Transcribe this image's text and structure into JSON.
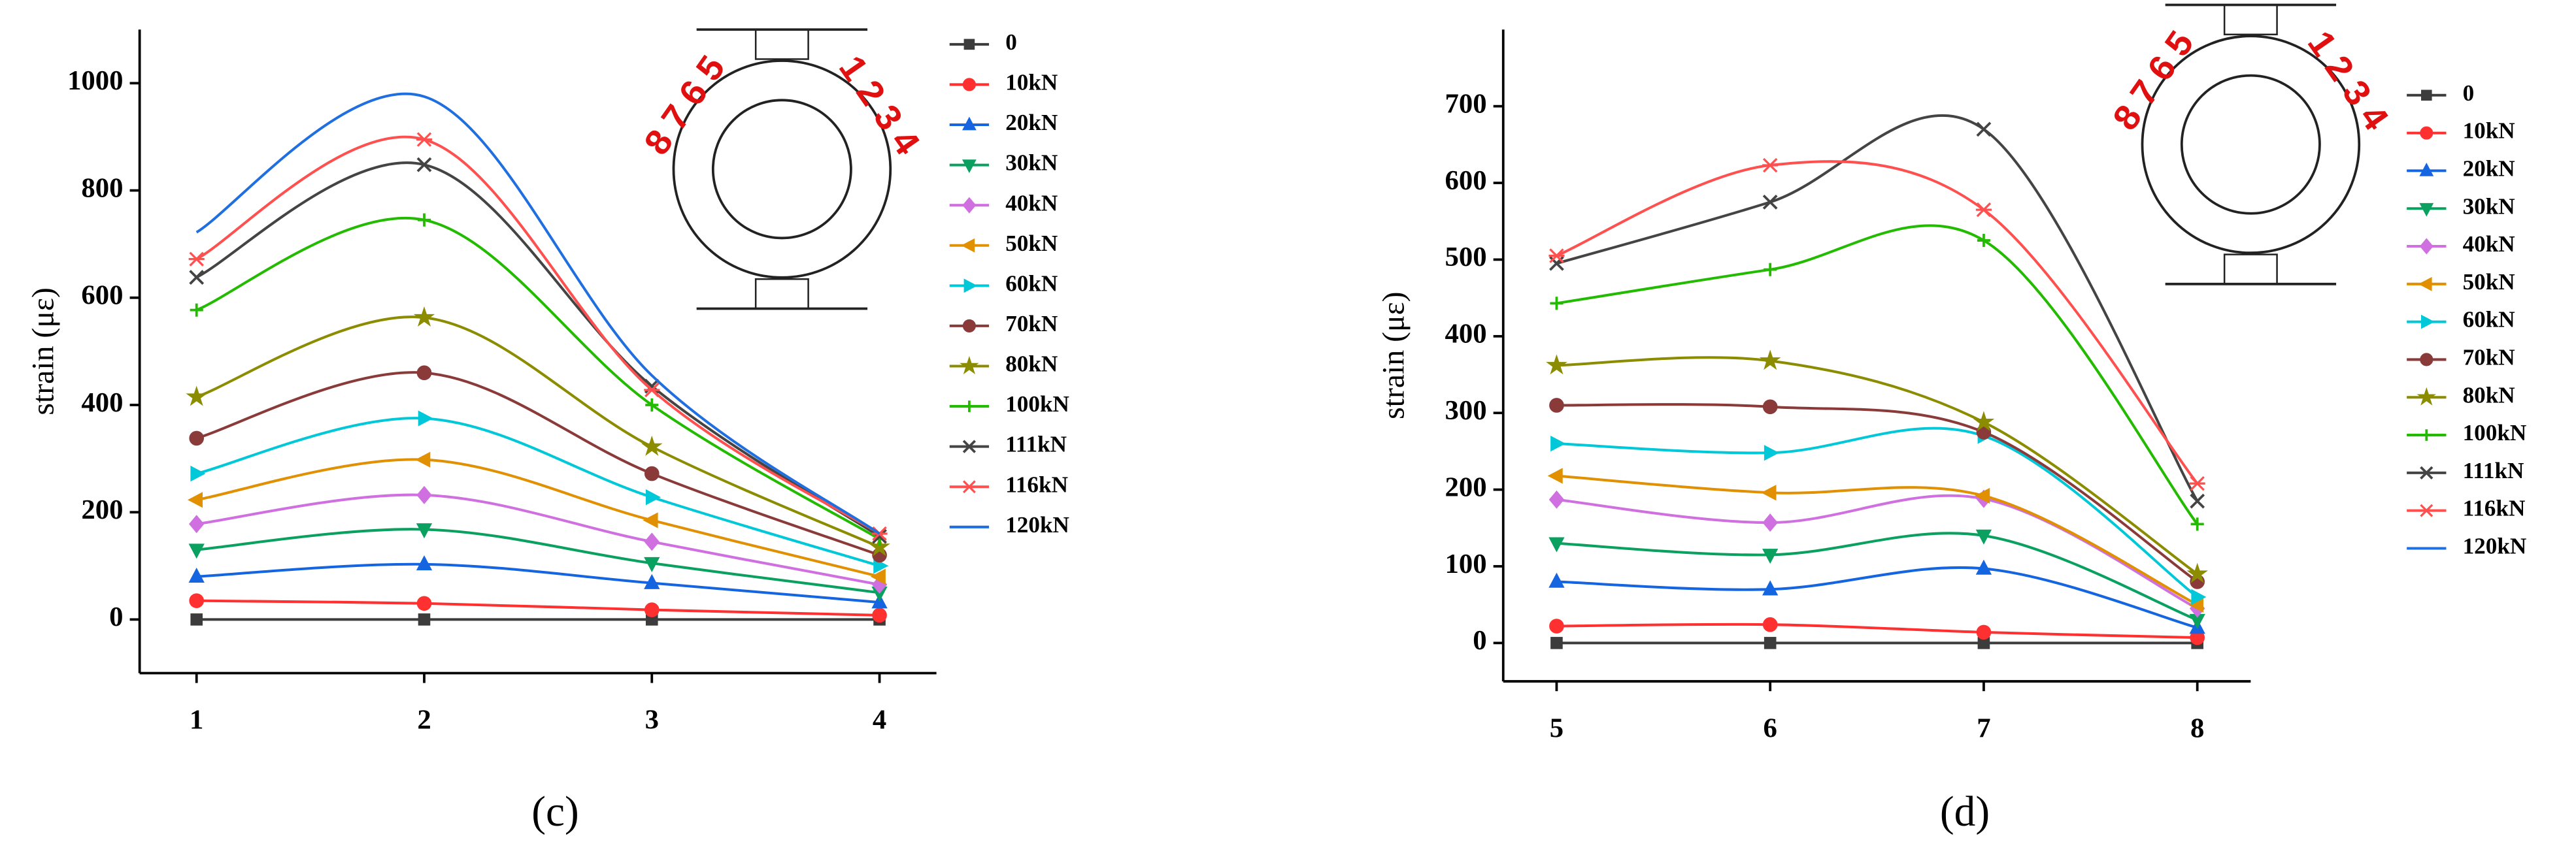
{
  "chart_data": [
    {
      "type": "line",
      "caption": "(c)",
      "ylabel": "strain (με)",
      "inset_labels": [
        "8 7 6 5",
        "1 2 3 4"
      ],
      "x": [
        1,
        2,
        3,
        4
      ],
      "xlim": [
        0.75,
        4.25
      ],
      "xticks": [
        1,
        2,
        3,
        4
      ],
      "ylim": [
        -100,
        1100
      ],
      "yticks": [
        0,
        200,
        400,
        600,
        800,
        1000
      ],
      "series": [
        {
          "name": "0",
          "color": "#3c3c3c",
          "marker": "square",
          "values": [
            0,
            0,
            0,
            0
          ]
        },
        {
          "name": "10kN",
          "color": "#ff3030",
          "marker": "circle",
          "values": [
            35,
            30,
            18,
            8
          ]
        },
        {
          "name": "20kN",
          "color": "#1565e0",
          "marker": "triangle-up",
          "values": [
            80,
            103,
            68,
            32
          ]
        },
        {
          "name": "30kN",
          "color": "#0aa060",
          "marker": "triangle-down",
          "values": [
            130,
            168,
            105,
            50
          ]
        },
        {
          "name": "40kN",
          "color": "#d070e0",
          "marker": "diamond",
          "values": [
            178,
            232,
            145,
            65
          ]
        },
        {
          "name": "50kN",
          "color": "#e09000",
          "marker": "triangle-left",
          "values": [
            223,
            298,
            185,
            80
          ]
        },
        {
          "name": "60kN",
          "color": "#00c8d8",
          "marker": "triangle-right",
          "values": [
            272,
            375,
            228,
            100
          ]
        },
        {
          "name": "70kN",
          "color": "#8b3a3a",
          "marker": "circle",
          "values": [
            338,
            460,
            272,
            120
          ]
        },
        {
          "name": "80kN",
          "color": "#8c8c00",
          "marker": "star",
          "values": [
            415,
            563,
            322,
            135
          ]
        },
        {
          "name": "100kN",
          "color": "#22bb00",
          "marker": "plus",
          "values": [
            577,
            745,
            400,
            150
          ]
        },
        {
          "name": "111kN",
          "color": "#444444",
          "marker": "cross",
          "values": [
            638,
            848,
            435,
            155
          ]
        },
        {
          "name": "116kN",
          "color": "#ff5050",
          "marker": "asterisk",
          "values": [
            672,
            895,
            428,
            160
          ]
        },
        {
          "name": "120kN",
          "color": "#1f6fe0",
          "marker": "none",
          "values": [
            722,
            975,
            455,
            160
          ]
        }
      ]
    },
    {
      "type": "line",
      "caption": "(d)",
      "ylabel": "strain (με)",
      "inset_labels": [
        "8 7 6 5",
        "1 2 3 4"
      ],
      "x": [
        5,
        6,
        7,
        8
      ],
      "xlim": [
        4.75,
        8.25
      ],
      "xticks": [
        5,
        6,
        7,
        8
      ],
      "ylim": [
        -50,
        800
      ],
      "yticks": [
        0,
        100,
        200,
        300,
        400,
        500,
        600,
        700
      ],
      "series": [
        {
          "name": "0",
          "color": "#3c3c3c",
          "marker": "square",
          "values": [
            0,
            0,
            0,
            0
          ]
        },
        {
          "name": "10kN",
          "color": "#ff3030",
          "marker": "circle",
          "values": [
            22,
            24,
            14,
            7
          ]
        },
        {
          "name": "20kN",
          "color": "#1565e0",
          "marker": "triangle-up",
          "values": [
            80,
            70,
            97,
            20
          ]
        },
        {
          "name": "30kN",
          "color": "#0aa060",
          "marker": "triangle-down",
          "values": [
            130,
            115,
            140,
            30
          ]
        },
        {
          "name": "40kN",
          "color": "#d070e0",
          "marker": "diamond",
          "values": [
            187,
            157,
            188,
            45
          ]
        },
        {
          "name": "50kN",
          "color": "#e09000",
          "marker": "triangle-left",
          "values": [
            218,
            196,
            192,
            50
          ]
        },
        {
          "name": "60kN",
          "color": "#00c8d8",
          "marker": "triangle-right",
          "values": [
            260,
            248,
            270,
            60
          ]
        },
        {
          "name": "70kN",
          "color": "#8b3a3a",
          "marker": "circle",
          "values": [
            310,
            308,
            275,
            80
          ]
        },
        {
          "name": "80kN",
          "color": "#8c8c00",
          "marker": "star",
          "values": [
            362,
            368,
            288,
            90
          ]
        },
        {
          "name": "100kN",
          "color": "#22bb00",
          "marker": "plus",
          "values": [
            443,
            487,
            525,
            155
          ]
        },
        {
          "name": "111kN",
          "color": "#444444",
          "marker": "cross",
          "values": [
            495,
            575,
            670,
            185
          ]
        },
        {
          "name": "116kN",
          "color": "#ff5050",
          "marker": "asterisk",
          "values": [
            505,
            623,
            565,
            208
          ]
        },
        {
          "name": "120kN",
          "color": "#1f6fe0",
          "marker": "none",
          "values": [
            null,
            null,
            null,
            null
          ]
        }
      ]
    }
  ]
}
